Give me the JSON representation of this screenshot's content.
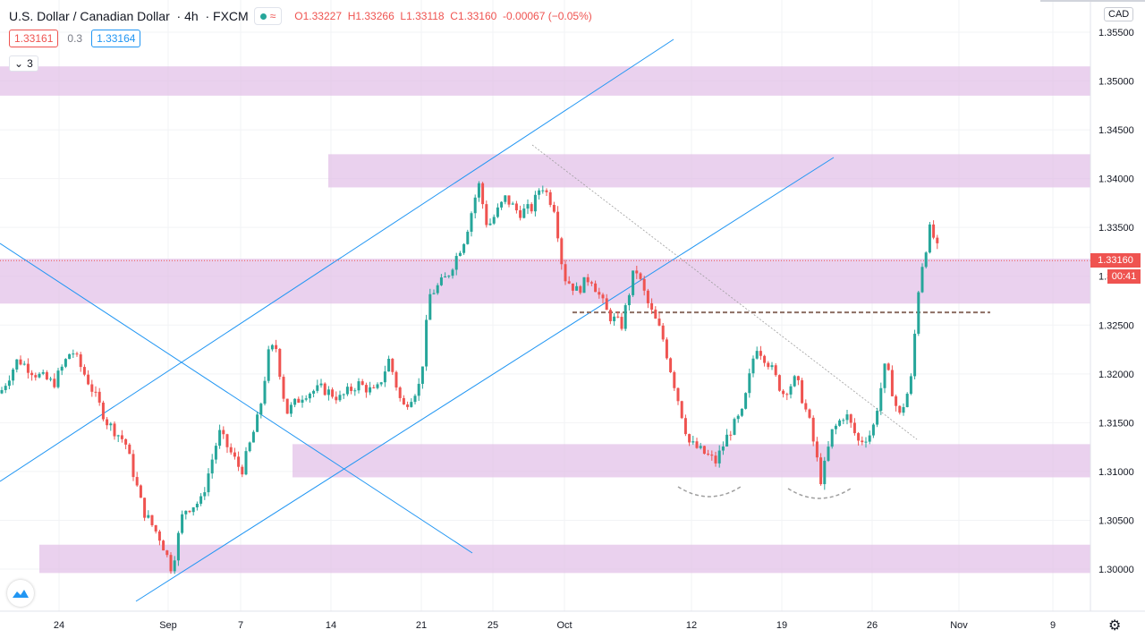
{
  "header": {
    "symbol": "U.S. Dollar / Canadian Dollar",
    "interval": "4h",
    "exchange": "FXCM",
    "open_label": "O",
    "open": "1.33227",
    "high_label": "H",
    "high": "1.33266",
    "low_label": "L",
    "low": "1.33118",
    "close_label": "C",
    "close": "1.33160",
    "change": "-0.00067 (−0.05%)"
  },
  "quote": {
    "bid": "1.33161",
    "spread": "0.3",
    "ask": "1.33164"
  },
  "indicators_collapsed": {
    "icon": "chevron-down-icon",
    "count": "3"
  },
  "currency_badge": "CAD",
  "last_price_label": "1.33160",
  "countdown_label": "00:41",
  "colors": {
    "up": "#26a69a",
    "down": "#ef5350",
    "zone": "#e1bee7",
    "trend": "#2196f3",
    "neckline": "#8d6e63"
  },
  "chart_data": {
    "type": "candlestick",
    "title": "U.S. Dollar / Canadian Dollar, 4h, FXCM",
    "y_ticks": [
      "1.35500",
      "1.35000",
      "1.34500",
      "1.34000",
      "1.33500",
      "1.33000",
      "1.32500",
      "1.32000",
      "1.31500",
      "1.31000",
      "1.30500",
      "1.30000"
    ],
    "x_ticks": [
      "24",
      "Sep",
      "7",
      "14",
      "21",
      "25",
      "Oct",
      "12",
      "19",
      "26",
      "Nov",
      "9"
    ],
    "ylim": [
      1.2955,
      1.3575
    ],
    "candles_source_points": [
      [
        0,
        1.318
      ],
      [
        20,
        1.3215
      ],
      [
        40,
        1.32
      ],
      [
        60,
        1.319
      ],
      [
        80,
        1.3225
      ],
      [
        100,
        1.319
      ],
      [
        120,
        1.315
      ],
      [
        140,
        1.313
      ],
      [
        160,
        1.306
      ],
      [
        180,
        1.303
      ],
      [
        192,
        1.3
      ],
      [
        205,
        1.306
      ],
      [
        225,
        1.307
      ],
      [
        245,
        1.314
      ],
      [
        270,
        1.31
      ],
      [
        290,
        1.316
      ],
      [
        300,
        1.322
      ],
      [
        308,
        1.323
      ],
      [
        320,
        1.316
      ],
      [
        340,
        1.318
      ],
      [
        360,
        1.3185
      ],
      [
        380,
        1.3175
      ],
      [
        400,
        1.319
      ],
      [
        420,
        1.318
      ],
      [
        435,
        1.3215
      ],
      [
        450,
        1.3165
      ],
      [
        470,
        1.319
      ],
      [
        480,
        1.328
      ],
      [
        500,
        1.33
      ],
      [
        520,
        1.334
      ],
      [
        535,
        1.3395
      ],
      [
        545,
        1.335
      ],
      [
        565,
        1.338
      ],
      [
        580,
        1.3365
      ],
      [
        595,
        1.337
      ],
      [
        605,
        1.3395
      ],
      [
        620,
        1.337
      ],
      [
        630,
        1.33
      ],
      [
        645,
        1.3285
      ],
      [
        660,
        1.33
      ],
      [
        680,
        1.326
      ],
      [
        695,
        1.325
      ],
      [
        710,
        1.331
      ],
      [
        725,
        1.327
      ],
      [
        740,
        1.324
      ],
      [
        755,
        1.3185
      ],
      [
        770,
        1.313
      ],
      [
        785,
        1.312
      ],
      [
        800,
        1.311
      ],
      [
        815,
        1.314
      ],
      [
        830,
        1.316
      ],
      [
        845,
        1.323
      ],
      [
        860,
        1.321
      ],
      [
        875,
        1.318
      ],
      [
        890,
        1.3195
      ],
      [
        905,
        1.315
      ],
      [
        918,
        1.309
      ],
      [
        930,
        1.314
      ],
      [
        945,
        1.316
      ],
      [
        960,
        1.313
      ],
      [
        975,
        1.314
      ],
      [
        990,
        1.321
      ],
      [
        1005,
        1.3155
      ],
      [
        1018,
        1.319
      ],
      [
        1028,
        1.33
      ],
      [
        1040,
        1.335
      ],
      [
        1052,
        1.3316
      ]
    ],
    "zones": [
      {
        "x_from": "",
        "y_low": 1.3485,
        "y_high": 1.3515
      },
      {
        "y_low": 1.3391,
        "y_high": 1.3425
      },
      {
        "y_low": 1.3272,
        "y_high": 1.3318
      },
      {
        "y_low": 1.3094,
        "y_high": 1.3128
      },
      {
        "y_low": 1.2996,
        "y_high": 1.3025
      }
    ],
    "neckline": 1.3263,
    "last_price": 1.3316
  }
}
